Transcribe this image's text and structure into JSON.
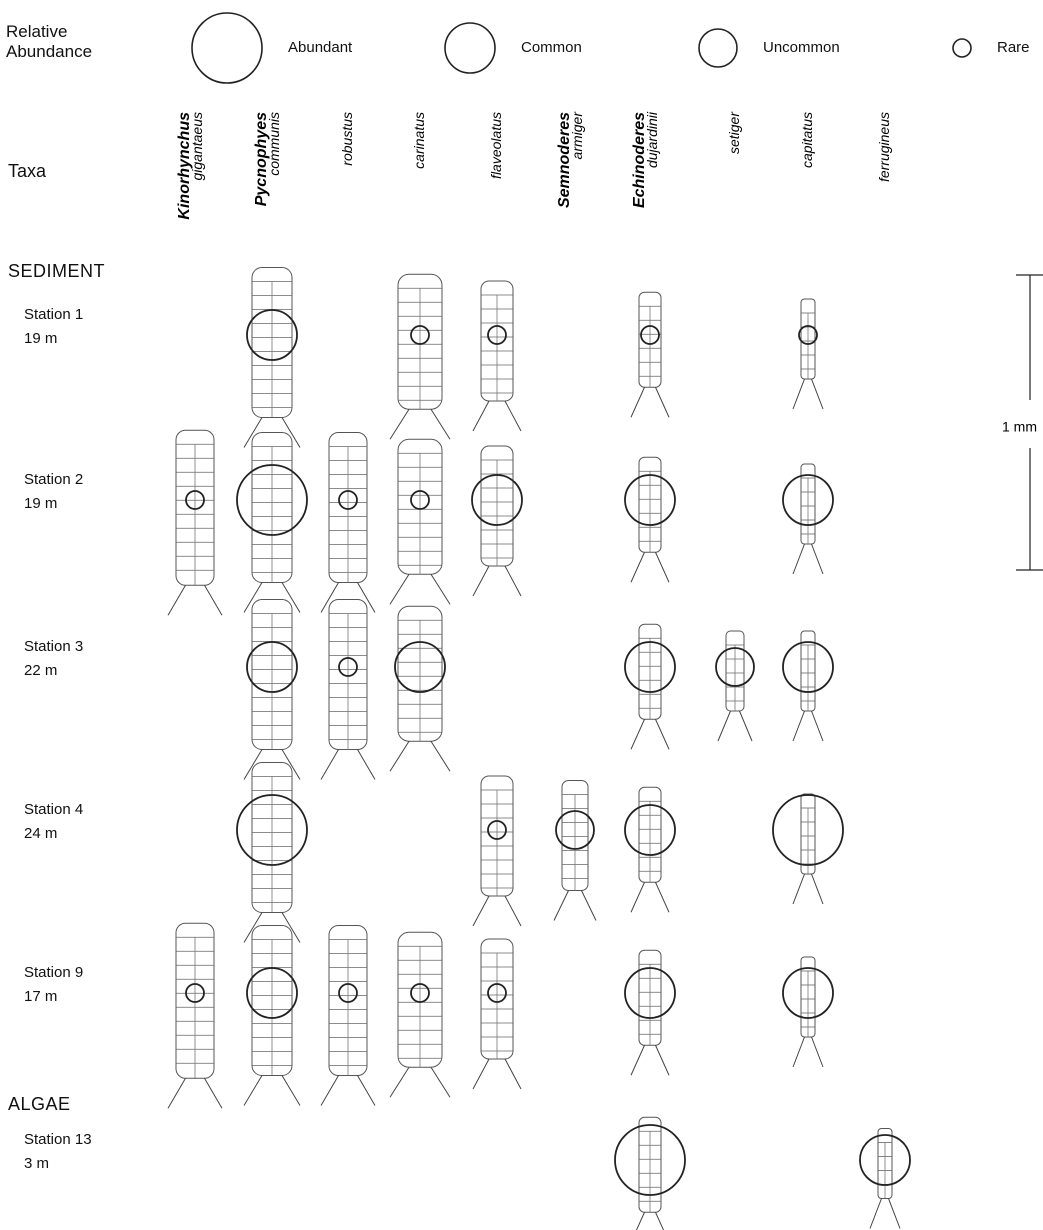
{
  "legend": {
    "title": "Relative Abundance",
    "levels": [
      "Abundant",
      "Common",
      "Uncommon",
      "Rare"
    ]
  },
  "taxa_label": "Taxa",
  "taxa": [
    {
      "genus": "Kinorhynchus",
      "species": "gigantaeus"
    },
    {
      "genus": "Pycnophyes",
      "species": "communis"
    },
    {
      "species": "robustus"
    },
    {
      "species": "carinatus"
    },
    {
      "species": "flaveolatus"
    },
    {
      "genus": "Semnoderes",
      "species": "armiger"
    },
    {
      "genus": "Echinoderes",
      "species": "dujardinii"
    },
    {
      "species": "setiger"
    },
    {
      "species": "capitatus"
    },
    {
      "species": "ferrugineus"
    }
  ],
  "groups": [
    {
      "name": "SEDIMENT",
      "stations": [
        {
          "name": "Station 1",
          "depth": "19 m",
          "abundance": [
            null,
            "Common",
            null,
            "Rare",
            "Rare",
            null,
            "Rare",
            null,
            "Rare",
            null
          ]
        },
        {
          "name": "Station 2",
          "depth": "19 m",
          "abundance": [
            "Rare",
            "Abundant",
            "Rare",
            "Rare",
            "Common",
            null,
            "Common",
            null,
            "Common",
            null
          ]
        },
        {
          "name": "Station 3",
          "depth": "22 m",
          "abundance": [
            null,
            "Common",
            "Rare",
            "Common",
            null,
            null,
            "Common",
            "Uncommon",
            "Common",
            null
          ]
        },
        {
          "name": "Station 4",
          "depth": "24 m",
          "abundance": [
            null,
            "Abundant",
            null,
            null,
            "Rare",
            "Uncommon",
            "Common",
            null,
            "Abundant",
            null
          ]
        },
        {
          "name": "Station 9",
          "depth": "17 m",
          "abundance": [
            "Rare",
            "Common",
            "Rare",
            "Rare",
            "Rare",
            null,
            "Common",
            null,
            "Common",
            null
          ]
        }
      ]
    },
    {
      "name": "ALGAE",
      "stations": [
        {
          "name": "Station 13",
          "depth": "3 m",
          "abundance": [
            null,
            null,
            null,
            null,
            null,
            null,
            "Abundant",
            null,
            null,
            "Common"
          ]
        }
      ]
    }
  ],
  "scale_bar": "1 mm"
}
